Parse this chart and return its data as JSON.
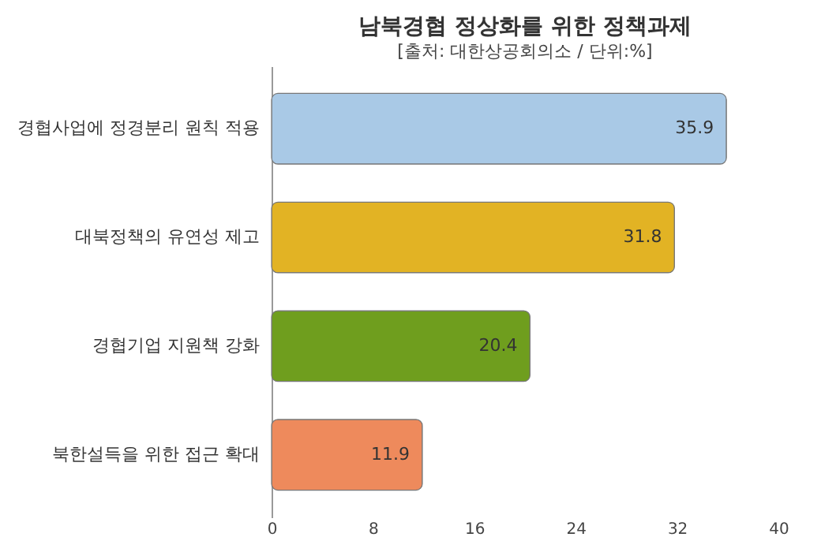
{
  "chart_data": {
    "type": "bar",
    "orientation": "horizontal",
    "title": "남북경협 정상화를 위한 정책과제",
    "subtitle": "[출처: 대한상공회의소 / 단위:%]",
    "categories": [
      "경협사업에 정경분리 원칙 적용",
      "대북정책의 유연성 제고",
      "경협기업 지원책 강화",
      "북한설득을 위한 접근 확대"
    ],
    "values": [
      35.9,
      31.8,
      20.4,
      11.9
    ],
    "colors": [
      "#a9c9e6",
      "#e2b324",
      "#6f9e1e",
      "#ee8a5c"
    ],
    "xlim": [
      0,
      40
    ],
    "xticks": [
      0,
      8,
      16,
      24,
      32,
      40
    ],
    "grid": false,
    "data_labels": true
  }
}
